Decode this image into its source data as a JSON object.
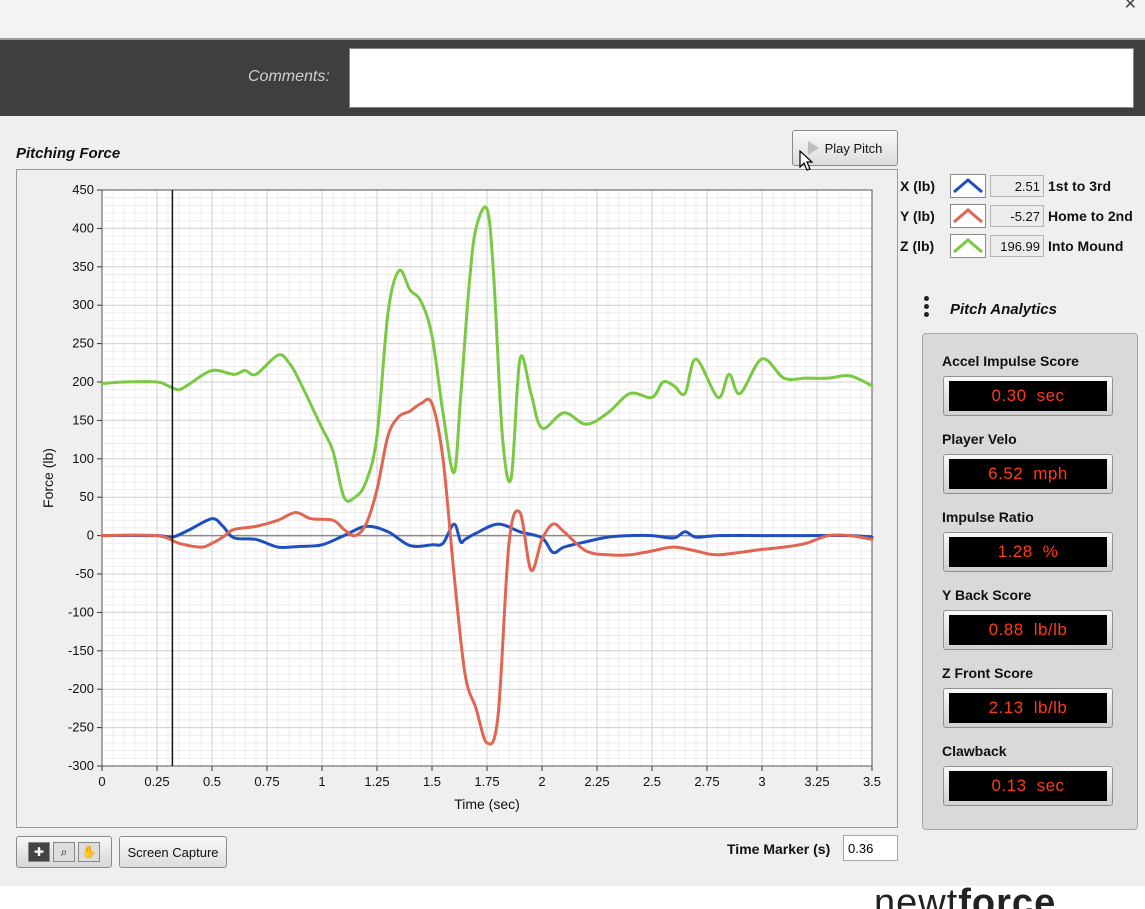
{
  "comments": {
    "label": "Comments:",
    "value": ""
  },
  "graph": {
    "title": "Pitching Force",
    "marker_x": 0.32
  },
  "play_button": {
    "label": "Play Pitch"
  },
  "legend": [
    {
      "axis": "X (lb)",
      "value": "2.51",
      "desc": "1st to 3rd",
      "color": "#1f4fbf"
    },
    {
      "axis": "Y (lb)",
      "value": "-5.27",
      "desc": "Home to 2nd",
      "color": "#e06652"
    },
    {
      "axis": "Z (lb)",
      "value": "196.99",
      "desc": "Into Mound",
      "color": "#7ac943"
    }
  ],
  "analytics": {
    "title": "Pitch Analytics",
    "metrics": [
      {
        "label": "Accel Impulse Score",
        "value": "0.30",
        "unit": "sec"
      },
      {
        "label": "Player Velo",
        "value": "6.52",
        "unit": "mph"
      },
      {
        "label": "Impulse Ratio",
        "value": "1.28",
        "unit": "%"
      },
      {
        "label": "Y Back Score",
        "value": "0.88",
        "unit": "lb/lb"
      },
      {
        "label": "Z Front Score",
        "value": "2.13",
        "unit": "lb/lb"
      },
      {
        "label": "Clawback",
        "value": "0.13",
        "unit": "sec"
      }
    ]
  },
  "toolbar": {
    "screen_capture_label": "Screen Capture"
  },
  "time_marker": {
    "label": "Time Marker (s)",
    "value": "0.36"
  },
  "brand": {
    "part1": "newt",
    "part2": "force"
  },
  "chart_data": {
    "type": "line",
    "xlabel": "Time (sec)",
    "ylabel": "Force (lb)",
    "xlim": [
      0,
      3.5
    ],
    "ylim": [
      -300,
      450
    ],
    "x_ticks": [
      "0",
      "0.25",
      "0.5",
      "0.75",
      "1",
      "1.25",
      "1.5",
      "1.75",
      "2",
      "2.25",
      "2.5",
      "2.75",
      "3",
      "3.25",
      "3.5"
    ],
    "y_ticks": [
      "450",
      "400",
      "350",
      "300",
      "250",
      "200",
      "150",
      "100",
      "50",
      "0",
      "-50",
      "-100",
      "-150",
      "-200",
      "-250",
      "-300"
    ],
    "grid": true,
    "series": [
      {
        "name": "X (lb)",
        "color": "#1f4fbf",
        "x": [
          0,
          0.25,
          0.32,
          0.4,
          0.5,
          0.55,
          0.6,
          0.7,
          0.8,
          0.9,
          1.0,
          1.1,
          1.2,
          1.3,
          1.4,
          1.5,
          1.55,
          1.6,
          1.63,
          1.65,
          1.7,
          1.8,
          1.9,
          2.0,
          2.05,
          2.1,
          2.2,
          2.3,
          2.4,
          2.5,
          2.6,
          2.65,
          2.7,
          2.8,
          3.0,
          3.2,
          3.4,
          3.5
        ],
        "y": [
          0,
          0,
          -2,
          8,
          22,
          12,
          -3,
          -5,
          -15,
          -14,
          -12,
          0,
          12,
          5,
          -13,
          -12,
          -10,
          15,
          -8,
          -5,
          3,
          15,
          5,
          -3,
          -22,
          -15,
          -8,
          -2,
          0,
          0,
          -3,
          5,
          -2,
          0,
          0,
          0,
          0,
          -2
        ]
      },
      {
        "name": "Y (lb)",
        "color": "#e06652",
        "x": [
          0,
          0.25,
          0.35,
          0.45,
          0.5,
          0.55,
          0.6,
          0.7,
          0.8,
          0.88,
          0.95,
          1.05,
          1.1,
          1.15,
          1.2,
          1.25,
          1.3,
          1.35,
          1.4,
          1.45,
          1.5,
          1.55,
          1.6,
          1.65,
          1.7,
          1.75,
          1.8,
          1.85,
          1.9,
          1.95,
          2.0,
          2.05,
          2.1,
          2.2,
          2.3,
          2.4,
          2.5,
          2.6,
          2.7,
          2.8,
          3.0,
          3.1,
          3.2,
          3.3,
          3.4,
          3.5
        ],
        "y": [
          0,
          0,
          -10,
          -15,
          -10,
          -2,
          8,
          12,
          20,
          30,
          22,
          20,
          8,
          0,
          15,
          60,
          130,
          155,
          162,
          172,
          172,
          100,
          -50,
          -180,
          -225,
          -270,
          -235,
          -10,
          30,
          -45,
          -5,
          15,
          5,
          -20,
          -25,
          -25,
          -20,
          -15,
          -20,
          -25,
          -18,
          -15,
          -10,
          0,
          0,
          -5
        ]
      },
      {
        "name": "Z (lb)",
        "color": "#7ac943",
        "x": [
          0,
          0.1,
          0.25,
          0.3,
          0.35,
          0.4,
          0.5,
          0.6,
          0.65,
          0.7,
          0.8,
          0.85,
          0.9,
          1.0,
          1.05,
          1.1,
          1.15,
          1.2,
          1.25,
          1.3,
          1.35,
          1.4,
          1.45,
          1.5,
          1.55,
          1.6,
          1.63,
          1.67,
          1.7,
          1.75,
          1.78,
          1.82,
          1.86,
          1.9,
          1.95,
          2.0,
          2.1,
          2.2,
          2.3,
          2.4,
          2.5,
          2.55,
          2.6,
          2.65,
          2.7,
          2.8,
          2.85,
          2.9,
          3.0,
          3.1,
          3.2,
          3.3,
          3.4,
          3.5
        ],
        "y": [
          198,
          200,
          200,
          195,
          190,
          198,
          215,
          210,
          215,
          210,
          235,
          225,
          200,
          140,
          110,
          50,
          50,
          70,
          130,
          290,
          345,
          320,
          305,
          260,
          160,
          82,
          180,
          330,
          400,
          425,
          340,
          130,
          75,
          230,
          185,
          140,
          160,
          145,
          160,
          185,
          180,
          200,
          195,
          185,
          230,
          180,
          210,
          185,
          230,
          205,
          205,
          205,
          208,
          195
        ]
      }
    ]
  }
}
